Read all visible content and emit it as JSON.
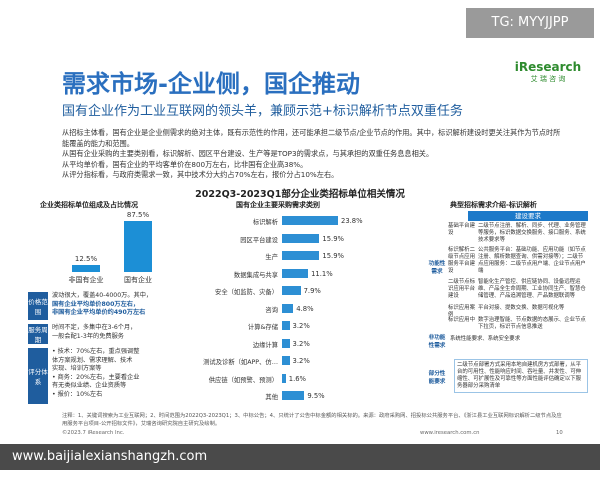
{
  "watermark_top": "TG: MYYJJPP",
  "watermark_bottom": "www.baijialexianshangzh.com",
  "logo": {
    "brand": "iResearch",
    "cn": "艾 瑞 咨 询"
  },
  "title": "需求市场-企业侧，国企推动",
  "subtitle": "国有企业作为工业互联网的领头羊，兼顾示范+标识解析节点双重任务",
  "paragraphs": [
    "从招标主体看，国有企业是企业侧需求的绝对主体，既有示范性的作用，还可能承担二级节点/企业节点的作用。其中，标识解析建设时更关注其作为节点时所能覆盖的能力和范围。",
    "从国有企业采购的主要类别看，标识解析、园区平台建设、生产等是TOP3的需求点，与其承担的双重任务息息相关。",
    "从平均单价看，国有企业的平均客单价在800万左右，比非国有企业高38%。",
    "从评分指标看，与政府类需求一致，其中技术分大约占70%左右，报价分占10%左右。"
  ],
  "main_title": "2022Q3-2023Q1部分企业类招标单位相关情况",
  "left_section": {
    "header": "企业类招标单位组成及占比情况",
    "bars": [
      {
        "label": "非国有企业",
        "value": 12.5,
        "display": "12.5%"
      },
      {
        "label": "国有企业",
        "value": 87.5,
        "display": "87.5%"
      }
    ],
    "rows": [
      {
        "tag": "价格范围",
        "lines": [
          "波动很大，覆盖40-4000万。其中，",
          "国有企业平均单价800万左右，",
          "非国有企业平均单价约490万左右"
        ]
      },
      {
        "tag": "服务周期",
        "lines": [
          "时间不定，多集中在3-6个月，",
          "一般会配1-3年的免费服务"
        ]
      },
      {
        "tag": "评分体系",
        "lines": [
          "• 技术：70%左右，重点强调整",
          "  体方案规划、需求理解、技术",
          "  实现、培训方案等",
          "• 商务：20%左右，主要看企业",
          "  有无类似业绩、企业资质等",
          "• 报价：10%左右"
        ]
      }
    ]
  },
  "mid_section": {
    "header": "国有企业主要采购需求类别",
    "items": [
      {
        "label": "标识解析",
        "value": 23.8,
        "display": "23.8%"
      },
      {
        "label": "园区平台建设",
        "value": 15.9,
        "display": "15.9%"
      },
      {
        "label": "生产",
        "value": 15.9,
        "display": "15.9%"
      },
      {
        "label": "数据集成与共享",
        "value": 11.1,
        "display": "11.1%"
      },
      {
        "label": "安全（如监防、灾备）",
        "value": 7.9,
        "display": "7.9%"
      },
      {
        "label": "咨询",
        "value": 4.8,
        "display": "4.8%"
      },
      {
        "label": "计算&存储",
        "value": 3.2,
        "display": "3.2%"
      },
      {
        "label": "边缘计算",
        "value": 3.2,
        "display": "3.2%"
      },
      {
        "label": "测试及诊断（如APP、仿…",
        "value": 3.2,
        "display": "3.2%"
      },
      {
        "label": "供应链（如预警、预测）",
        "value": 1.6,
        "display": "1.6%"
      },
      {
        "label": "其他",
        "value": 9.5,
        "display": "9.5%"
      }
    ]
  },
  "right_section": {
    "header": "典型招标需求介绍-标识解析",
    "build_header": "建设要求",
    "tag_func": "功能性需求",
    "tag_nonfunc": "非功能性需求",
    "tag_perf": "部分性能要求",
    "rows": [
      {
        "left": "基础平台建设",
        "right": "二级节点注册、解析、同步、代理、业务管理等服务，标识数据交换服务、接口服务、系统技术要求等"
      },
      {
        "left": "标识解析二级节点应用服务平台建设",
        "right": "公共服务平台：基础功能、应用功能（如节点注册、解析数据查询、供需对接等）；二级节点应用服务：二级节点用户端、企业节点用户端"
      },
      {
        "left": "二级节点标识应用平台建设",
        "right": "智能化生产管控、供应链协同、设备远程运维、产品全生命周期、工业协同生产、智慧仓储管理、产品追溯管理、产品数据联调等"
      },
      {
        "left": "标识应用案例",
        "right": "平台对接、提数交换、数据可视化等"
      },
      {
        "left": "标识应用中",
        "right": "数字治理智能、节点数据的态展示、企业节点下拉页，标识节点信息推送"
      }
    ],
    "nonfunc_text": "系统性能要求、系统安全要求",
    "perf_text": "二级节点部署方式采用本地自建机房方式部署，从平台的可用性、性能响应时间、吞吐量、并发性、可伸缩性、可扩展性及可靠性等方面性能评估确定以下服务器部分采购清单"
  },
  "footnote": "注释：1、关键词搜索为工业互联网；2、时间范围为2022Q3-2023Q1；3、中标公告；4、只统计了公告中标金额的相关标的。来源：政府采购网、招投标公共服务平台、《浙江县工业互联网标识解析二级节点及应用服务平台项目-公开招标文件》，艾瑞咨询研究院自主研究及绘制。",
  "copyright": "©2023.7 iResearch Inc.",
  "site": "www.iresearch.com.cn",
  "page_number": "10",
  "colors": {
    "accent": "#2a6fbf",
    "bar": "#1c8fd6"
  }
}
